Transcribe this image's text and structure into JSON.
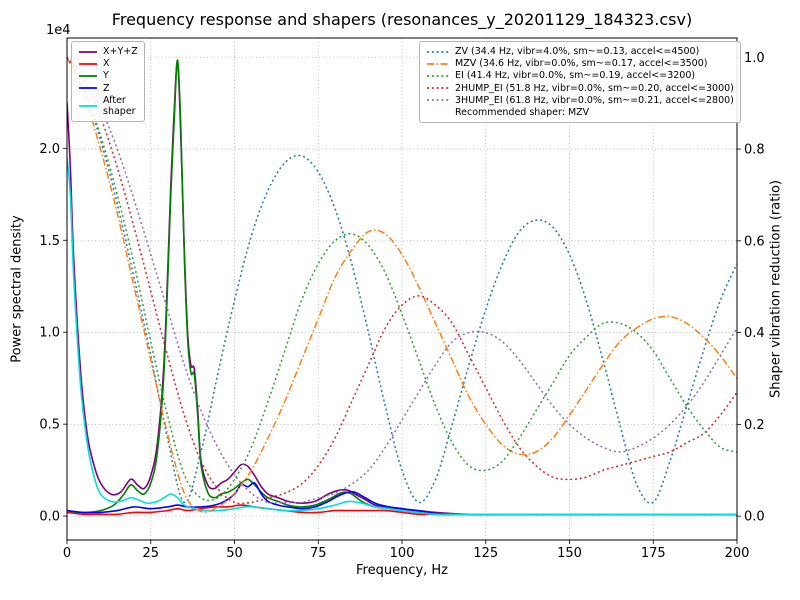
{
  "chart_data": {
    "type": "line",
    "title": "Frequency response and shapers (resonances_y_20201129_184323.csv)",
    "xlabel": "Frequency, Hz",
    "ylabel_left": "Power spectral density",
    "ylabel_right": "Shaper vibration reduction (ratio)",
    "offset_text": "1e4",
    "grid": true,
    "xlim": [
      0,
      200
    ],
    "ylim_left": [
      -0.13,
      2.6
    ],
    "ylim_right": [
      -0.052,
      1.042
    ],
    "x_ticks": [
      0,
      25,
      50,
      75,
      100,
      125,
      150,
      175,
      200
    ],
    "y_left_ticks": [
      0.0,
      0.5,
      1.0,
      1.5,
      2.0
    ],
    "y_right_ticks": [
      0.0,
      0.2,
      0.4,
      0.6,
      0.8,
      1.0
    ],
    "grid_color": "#b0b0b0",
    "recommended": "Recommended shaper: MZV",
    "psd_series": [
      {
        "label": "X+Y+Z",
        "color": "#800080",
        "style": "solid",
        "x": [
          0,
          1,
          2,
          4,
          6,
          8,
          10,
          13,
          16,
          19,
          21,
          23,
          25,
          27,
          29,
          31,
          32,
          33,
          34,
          35,
          36,
          37,
          38,
          39,
          40,
          42,
          44,
          46,
          48,
          50,
          52,
          54,
          56,
          58,
          60,
          63,
          66,
          70,
          74,
          78,
          81,
          84,
          86,
          89,
          92,
          96,
          100,
          105,
          110,
          120,
          140,
          170,
          200
        ],
        "y": [
          2.25,
          1.9,
          1.4,
          0.8,
          0.45,
          0.28,
          0.18,
          0.12,
          0.13,
          0.2,
          0.17,
          0.15,
          0.22,
          0.4,
          0.85,
          1.8,
          2.2,
          2.47,
          2.05,
          1.45,
          1.0,
          0.82,
          0.8,
          0.58,
          0.3,
          0.17,
          0.15,
          0.18,
          0.2,
          0.24,
          0.28,
          0.27,
          0.22,
          0.16,
          0.12,
          0.1,
          0.08,
          0.07,
          0.08,
          0.12,
          0.14,
          0.14,
          0.12,
          0.09,
          0.06,
          0.05,
          0.04,
          0.03,
          0.02,
          0.01,
          0.01,
          0.01,
          0.01
        ]
      },
      {
        "label": "X",
        "color": "#ff0000",
        "style": "solid",
        "x": [
          0,
          5,
          10,
          15,
          20,
          25,
          30,
          33,
          36,
          40,
          44,
          48,
          52,
          56,
          60,
          65,
          70,
          75,
          80,
          85,
          90,
          95,
          100,
          105,
          110,
          120,
          140,
          170,
          200
        ],
        "y": [
          0.02,
          0.01,
          0.01,
          0.01,
          0.02,
          0.02,
          0.03,
          0.04,
          0.03,
          0.04,
          0.05,
          0.05,
          0.06,
          0.05,
          0.04,
          0.03,
          0.02,
          0.02,
          0.03,
          0.03,
          0.03,
          0.03,
          0.02,
          0.01,
          0.01,
          0.01,
          0.01,
          0.01,
          0.01
        ]
      },
      {
        "label": "Y",
        "color": "#008000",
        "style": "solid",
        "x": [
          0,
          3,
          6,
          10,
          14,
          17,
          19,
          21,
          23,
          25,
          27,
          29,
          31,
          32,
          33,
          34,
          35,
          36,
          37,
          38,
          39,
          40,
          42,
          44,
          46,
          48,
          50,
          52,
          54,
          56,
          58,
          60,
          63,
          66,
          70,
          74,
          78,
          81,
          83,
          85,
          88,
          92,
          96,
          100,
          105,
          110,
          120,
          140,
          170,
          200
        ],
        "y": [
          0.03,
          0.02,
          0.02,
          0.03,
          0.06,
          0.12,
          0.17,
          0.14,
          0.12,
          0.18,
          0.35,
          0.8,
          1.75,
          2.15,
          2.48,
          2.1,
          1.42,
          0.97,
          0.78,
          0.77,
          0.55,
          0.28,
          0.13,
          0.1,
          0.12,
          0.13,
          0.15,
          0.18,
          0.2,
          0.17,
          0.13,
          0.1,
          0.08,
          0.06,
          0.05,
          0.06,
          0.09,
          0.12,
          0.13,
          0.12,
          0.08,
          0.05,
          0.04,
          0.03,
          0.02,
          0.01,
          0.01,
          0.01,
          0.01,
          0.01
        ]
      },
      {
        "label": "Z",
        "color": "#0000ff",
        "style": "solid",
        "x": [
          0,
          5,
          10,
          15,
          20,
          25,
          30,
          33,
          36,
          40,
          44,
          47,
          50,
          52,
          54,
          56,
          58,
          60,
          63,
          66,
          70,
          74,
          78,
          81,
          84,
          86,
          89,
          92,
          96,
          100,
          104,
          108,
          112,
          120,
          140,
          170,
          200
        ],
        "y": [
          0.03,
          0.02,
          0.02,
          0.03,
          0.05,
          0.04,
          0.05,
          0.06,
          0.05,
          0.05,
          0.06,
          0.08,
          0.12,
          0.17,
          0.16,
          0.18,
          0.12,
          0.08,
          0.06,
          0.05,
          0.04,
          0.05,
          0.08,
          0.11,
          0.13,
          0.13,
          0.1,
          0.07,
          0.05,
          0.04,
          0.03,
          0.02,
          0.01,
          0.01,
          0.01,
          0.01,
          0.01
        ]
      },
      {
        "label": "After\nshaper",
        "color": "#00dede",
        "style": "solid",
        "x": [
          0,
          1,
          2,
          4,
          6,
          8,
          10,
          13,
          16,
          19,
          21,
          24,
          27,
          29,
          31,
          33,
          35,
          38,
          41,
          45,
          50,
          53,
          56,
          60,
          65,
          70,
          75,
          80,
          84,
          88,
          92,
          96,
          100,
          105,
          110,
          120,
          140,
          170,
          200
        ],
        "y": [
          1.95,
          1.75,
          1.3,
          0.72,
          0.4,
          0.22,
          0.12,
          0.08,
          0.08,
          0.1,
          0.09,
          0.07,
          0.08,
          0.1,
          0.12,
          0.1,
          0.06,
          0.04,
          0.03,
          0.03,
          0.04,
          0.05,
          0.05,
          0.04,
          0.03,
          0.03,
          0.04,
          0.06,
          0.08,
          0.07,
          0.05,
          0.04,
          0.03,
          0.02,
          0.01,
          0.01,
          0.01,
          0.01,
          0.01
        ]
      }
    ],
    "shaper_x": [
      0,
      5,
      10,
      15,
      20,
      25,
      30,
      35,
      40,
      45,
      50,
      55,
      60,
      65,
      70,
      75,
      80,
      85,
      90,
      95,
      100,
      105,
      110,
      115,
      120,
      125,
      130,
      135,
      140,
      145,
      150,
      155,
      160,
      165,
      170,
      175,
      180,
      185,
      190,
      195,
      200
    ],
    "shaper_series": [
      {
        "label": "ZV (34.4 Hz, vibr=4.0%, sm~=0.13, accel<=4500)",
        "color": "#1f77b4",
        "style": "dotted",
        "y": [
          1.0,
          0.93,
          0.82,
          0.68,
          0.52,
          0.35,
          0.17,
          0.03,
          0.14,
          0.31,
          0.47,
          0.61,
          0.71,
          0.77,
          0.785,
          0.75,
          0.67,
          0.55,
          0.4,
          0.24,
          0.1,
          0.03,
          0.08,
          0.2,
          0.33,
          0.45,
          0.55,
          0.62,
          0.645,
          0.63,
          0.57,
          0.47,
          0.34,
          0.2,
          0.07,
          0.03,
          0.12,
          0.24,
          0.36,
          0.47,
          0.55
        ]
      },
      {
        "label": "MZV (34.6 Hz, vibr=0.0%, sm~=0.17, accel<=3500)",
        "color": "#ff7f0e",
        "style": "dashdot",
        "y": [
          1.0,
          0.92,
          0.8,
          0.66,
          0.5,
          0.34,
          0.18,
          0.05,
          0.01,
          0.02,
          0.05,
          0.1,
          0.17,
          0.25,
          0.34,
          0.43,
          0.52,
          0.58,
          0.62,
          0.615,
          0.57,
          0.5,
          0.42,
          0.34,
          0.26,
          0.2,
          0.155,
          0.135,
          0.14,
          0.17,
          0.22,
          0.275,
          0.33,
          0.38,
          0.41,
          0.43,
          0.435,
          0.42,
          0.39,
          0.35,
          0.3
        ]
      },
      {
        "label": "EI (41.4 Hz, vibr=0.0%, sm~=0.19, accel<=3200)",
        "color": "#2ca02c",
        "style": "dotted",
        "y": [
          1.0,
          0.93,
          0.83,
          0.7,
          0.55,
          0.38,
          0.22,
          0.09,
          0.04,
          0.04,
          0.08,
          0.15,
          0.25,
          0.36,
          0.47,
          0.55,
          0.6,
          0.615,
          0.59,
          0.53,
          0.44,
          0.34,
          0.24,
          0.16,
          0.11,
          0.1,
          0.12,
          0.17,
          0.23,
          0.29,
          0.35,
          0.39,
          0.42,
          0.42,
          0.4,
          0.36,
          0.3,
          0.24,
          0.19,
          0.15,
          0.14
        ]
      },
      {
        "label": "2HUMP_EI (51.8 Hz, vibr=0.0%, sm~=0.20, accel<=3000)",
        "color": "#d62728",
        "style": "dotted",
        "y": [
          1.0,
          0.95,
          0.87,
          0.76,
          0.63,
          0.49,
          0.35,
          0.22,
          0.12,
          0.06,
          0.03,
          0.03,
          0.04,
          0.05,
          0.07,
          0.11,
          0.17,
          0.25,
          0.33,
          0.41,
          0.46,
          0.48,
          0.46,
          0.42,
          0.35,
          0.28,
          0.21,
          0.15,
          0.11,
          0.085,
          0.08,
          0.085,
          0.1,
          0.11,
          0.12,
          0.13,
          0.14,
          0.16,
          0.18,
          0.22,
          0.27
        ]
      },
      {
        "label": "3HUMP_EI (61.8 Hz, vibr=0.0%, sm~=0.21, accel<=2800)",
        "color": "#9467bd",
        "style": "dotted",
        "y": [
          1.0,
          0.96,
          0.89,
          0.8,
          0.69,
          0.57,
          0.45,
          0.33,
          0.23,
          0.15,
          0.09,
          0.05,
          0.03,
          0.03,
          0.03,
          0.04,
          0.05,
          0.07,
          0.1,
          0.15,
          0.21,
          0.27,
          0.33,
          0.38,
          0.4,
          0.4,
          0.38,
          0.34,
          0.29,
          0.24,
          0.2,
          0.17,
          0.15,
          0.14,
          0.15,
          0.17,
          0.2,
          0.24,
          0.29,
          0.35,
          0.41
        ]
      }
    ]
  }
}
